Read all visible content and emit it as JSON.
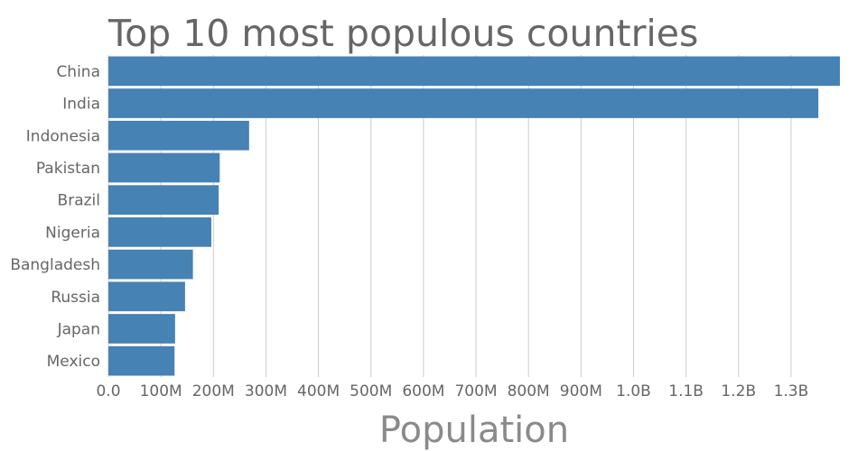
{
  "chart_data": {
    "type": "bar",
    "orientation": "horizontal",
    "title": "Top 10 most populous countries",
    "xlabel": "Population",
    "ylabel": "",
    "categories": [
      "China",
      "India",
      "Indonesia",
      "Pakistan",
      "Brazil",
      "Nigeria",
      "Bangladesh",
      "Russia",
      "Japan",
      "Mexico"
    ],
    "values": [
      1393000000,
      1352000000,
      268000000,
      212000000,
      210000000,
      196000000,
      161000000,
      146000000,
      127000000,
      126000000
    ],
    "xlim": [
      0,
      1393000000
    ],
    "xticks": [
      0,
      100000000,
      200000000,
      300000000,
      400000000,
      500000000,
      600000000,
      700000000,
      800000000,
      900000000,
      1000000000,
      1100000000,
      1200000000,
      1300000000
    ],
    "xtick_labels": [
      "0.0",
      "100M",
      "200M",
      "300M",
      "400M",
      "500M",
      "600M",
      "700M",
      "800M",
      "900M",
      "1.0B",
      "1.1B",
      "1.2B",
      "1.3B"
    ],
    "grid": true,
    "bar_color": "#4682b4"
  }
}
